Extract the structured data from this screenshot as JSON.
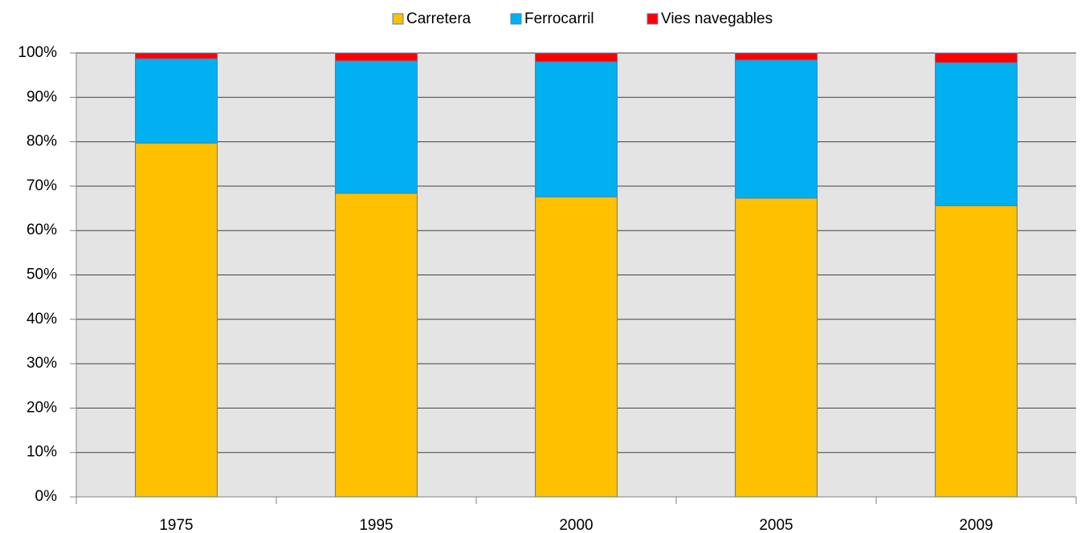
{
  "chart_data": {
    "type": "stacked_bar",
    "categories": [
      "1975",
      "1995",
      "2000",
      "2005",
      "2009"
    ],
    "series": [
      {
        "name": "Carretera",
        "color": "#ffc000",
        "values": [
          79.7,
          68.4,
          67.6,
          67.3,
          65.6
        ]
      },
      {
        "name": "Ferrocarril",
        "color": "#00b0f0",
        "values": [
          19.0,
          29.8,
          30.4,
          31.1,
          32.2
        ]
      },
      {
        "name": "Vies navegables",
        "color": "#ff0000",
        "values": [
          1.3,
          1.8,
          2.0,
          1.6,
          2.2
        ]
      }
    ],
    "ylim": [
      0,
      100
    ],
    "yticks": [
      {
        "value": 0,
        "label": "0%"
      },
      {
        "value": 10,
        "label": "10%"
      },
      {
        "value": 20,
        "label": "20%"
      },
      {
        "value": 30,
        "label": "30%"
      },
      {
        "value": 40,
        "label": "40%"
      },
      {
        "value": 50,
        "label": "50%"
      },
      {
        "value": 60,
        "label": "60%"
      },
      {
        "value": 70,
        "label": "70%"
      },
      {
        "value": 80,
        "label": "80%"
      },
      {
        "value": 90,
        "label": "90%"
      },
      {
        "value": 100,
        "label": "100%"
      }
    ],
    "grid": true,
    "legend": "top"
  }
}
